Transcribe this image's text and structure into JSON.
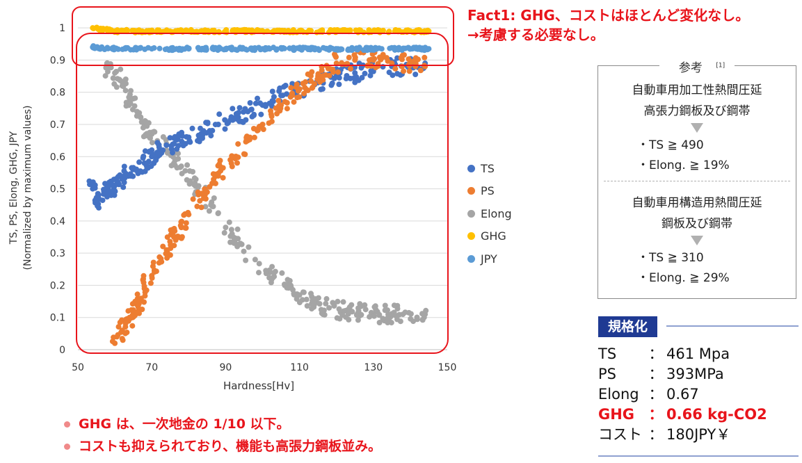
{
  "chart_data": {
    "type": "scatter",
    "xlabel": "Hardness[Hv]",
    "ylabel_line1": "TS, PS, Elong, GHG, JPY",
    "ylabel_line2": "(Normalized by maximum values)",
    "xlim": [
      50,
      150
    ],
    "ylim": [
      0,
      1.05
    ],
    "x_ticks": [
      50,
      70,
      90,
      110,
      130,
      150
    ],
    "y_ticks": [
      "0",
      "0.1",
      "0.2",
      "0.3",
      "0.4",
      "0.5",
      "0.6",
      "0.7",
      "0.8",
      "0.9",
      "1"
    ],
    "grid": "horizontal",
    "legend_placement": "right",
    "series": [
      {
        "name": "TS",
        "color": "#4472c4",
        "points": [
          [
            54,
            0.5
          ],
          [
            55,
            0.46
          ],
          [
            58,
            0.49
          ],
          [
            60,
            0.51
          ],
          [
            62,
            0.53
          ],
          [
            65,
            0.56
          ],
          [
            68,
            0.58
          ],
          [
            70,
            0.6
          ],
          [
            73,
            0.62
          ],
          [
            76,
            0.64
          ],
          [
            80,
            0.66
          ],
          [
            84,
            0.68
          ],
          [
            88,
            0.7
          ],
          [
            92,
            0.72
          ],
          [
            96,
            0.74
          ],
          [
            100,
            0.76
          ],
          [
            105,
            0.79
          ],
          [
            110,
            0.81
          ],
          [
            115,
            0.83
          ],
          [
            120,
            0.85
          ],
          [
            125,
            0.86
          ],
          [
            130,
            0.87
          ],
          [
            135,
            0.88
          ],
          [
            140,
            0.88
          ],
          [
            144,
            0.89
          ]
        ]
      },
      {
        "name": "PS",
        "color": "#ed7d31",
        "points": [
          [
            60,
            0.02
          ],
          [
            62,
            0.06
          ],
          [
            64,
            0.1
          ],
          [
            66,
            0.14
          ],
          [
            68,
            0.19
          ],
          [
            70,
            0.23
          ],
          [
            72,
            0.27
          ],
          [
            74,
            0.31
          ],
          [
            76,
            0.35
          ],
          [
            78,
            0.38
          ],
          [
            80,
            0.42
          ],
          [
            84,
            0.48
          ],
          [
            88,
            0.54
          ],
          [
            92,
            0.6
          ],
          [
            96,
            0.65
          ],
          [
            100,
            0.7
          ],
          [
            105,
            0.76
          ],
          [
            110,
            0.81
          ],
          [
            115,
            0.85
          ],
          [
            120,
            0.89
          ],
          [
            125,
            0.9
          ],
          [
            130,
            0.9
          ],
          [
            135,
            0.89
          ],
          [
            140,
            0.89
          ],
          [
            144,
            0.88
          ]
        ]
      },
      {
        "name": "Elong",
        "color": "#a5a5a5",
        "points": [
          [
            58,
            0.88
          ],
          [
            60,
            0.86
          ],
          [
            62,
            0.82
          ],
          [
            64,
            0.78
          ],
          [
            66,
            0.74
          ],
          [
            68,
            0.7
          ],
          [
            70,
            0.67
          ],
          [
            74,
            0.62
          ],
          [
            78,
            0.57
          ],
          [
            82,
            0.51
          ],
          [
            86,
            0.45
          ],
          [
            90,
            0.38
          ],
          [
            94,
            0.33
          ],
          [
            98,
            0.28
          ],
          [
            102,
            0.24
          ],
          [
            106,
            0.2
          ],
          [
            110,
            0.17
          ],
          [
            114,
            0.14
          ],
          [
            118,
            0.13
          ],
          [
            122,
            0.12
          ],
          [
            126,
            0.12
          ],
          [
            130,
            0.11
          ],
          [
            134,
            0.11
          ],
          [
            138,
            0.11
          ],
          [
            144,
            0.11
          ]
        ]
      },
      {
        "name": "GHG",
        "color": "#ffc000",
        "points": [
          [
            54,
            1.0
          ],
          [
            60,
            0.99
          ],
          [
            70,
            0.99
          ],
          [
            80,
            0.99
          ],
          [
            90,
            0.99
          ],
          [
            100,
            0.99
          ],
          [
            110,
            0.99
          ],
          [
            120,
            0.99
          ],
          [
            130,
            0.99
          ],
          [
            140,
            0.99
          ],
          [
            145,
            0.99
          ]
        ]
      },
      {
        "name": "JPY",
        "color": "#5b9bd5",
        "points": [
          [
            54,
            0.94
          ],
          [
            60,
            0.935
          ],
          [
            70,
            0.935
          ],
          [
            80,
            0.935
          ],
          [
            90,
            0.935
          ],
          [
            100,
            0.935
          ],
          [
            110,
            0.935
          ],
          [
            120,
            0.935
          ],
          [
            130,
            0.935
          ],
          [
            140,
            0.935
          ],
          [
            145,
            0.935
          ]
        ]
      }
    ]
  },
  "fact1": {
    "line1": "Fact1: GHG、コストはほとんど変化なし。",
    "line2": "→考慮する必要なし。"
  },
  "reference": {
    "title": "参考",
    "citation": "[1]",
    "block1_heading_line1": "自動車用加工性熱間圧延",
    "block1_heading_line2": "高張力鋼板及び鋼帯",
    "block1_req1": "・TS ≧ 490",
    "block1_req2": "・Elong. ≧ 19%",
    "block2_heading_line1": "自動車用構造用熱間圧延",
    "block2_heading_line2": "鋼板及び鋼帯",
    "block2_req1": "・TS ≧ 310",
    "block2_req2": "・Elong. ≧ 29%"
  },
  "spec": {
    "label": "規格化",
    "rows": [
      {
        "key": "TS",
        "colon": "：",
        "value": "461 Mpa"
      },
      {
        "key": "PS",
        "colon": "：",
        "value": "393MPa"
      },
      {
        "key": "Elong",
        "colon": "：",
        "value": "0.67"
      },
      {
        "key": "GHG",
        "colon": "：",
        "value": "0.66 kg-CO2"
      },
      {
        "key": "コスト",
        "colon": "：",
        "value": "180JPY￥"
      }
    ]
  },
  "notes": [
    "GHG は、一次地金の 1/10 以下。",
    "コストも抑えられており、機能も高張力鋼板並み。"
  ],
  "colors": {
    "accent_red": "#e8141b",
    "spec_label_bg": "#1f3a93"
  }
}
